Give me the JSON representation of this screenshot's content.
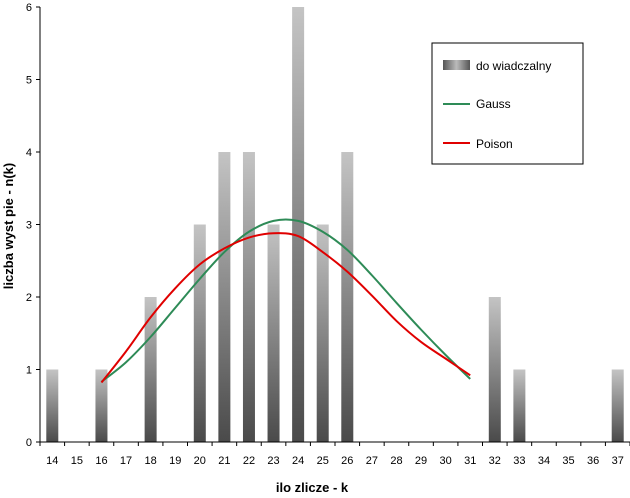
{
  "chart_data": {
    "type": "bar",
    "xlabel": "ilo    zlicze  - k",
    "ylabel": "liczba wyst pie  - n(k)",
    "ylim": [
      0,
      6
    ],
    "yticks": [
      "0",
      "1",
      "2",
      "3",
      "4",
      "5",
      "6"
    ],
    "categories": [
      "14",
      "15",
      "16",
      "17",
      "18",
      "19",
      "20",
      "21",
      "22",
      "23",
      "24",
      "25",
      "26",
      "27",
      "28",
      "29",
      "30",
      "31",
      "32",
      "33",
      "34",
      "35",
      "36",
      "37"
    ],
    "series": [
      {
        "name": "do  wiadczalny",
        "type": "bar",
        "values": [
          1,
          0,
          1,
          0,
          2,
          0,
          3,
          4,
          4,
          3,
          6,
          3,
          4,
          0,
          0,
          0,
          0,
          0,
          2,
          1,
          0,
          0,
          0,
          1
        ]
      },
      {
        "name": "Gauss",
        "type": "line",
        "color": "#2e8b57",
        "x": [
          16,
          17,
          18,
          19,
          20,
          21,
          22,
          23,
          24,
          25,
          26,
          27,
          28,
          29,
          30,
          31
        ],
        "values": [
          0.83,
          1.1,
          1.45,
          1.85,
          2.25,
          2.62,
          2.9,
          3.05,
          3.05,
          2.9,
          2.65,
          2.3,
          1.92,
          1.55,
          1.2,
          0.87
        ]
      },
      {
        "name": "Poison",
        "type": "line",
        "color": "#e00000",
        "x": [
          16,
          17,
          18,
          19,
          20,
          21,
          22,
          23,
          24,
          25,
          26,
          27,
          28,
          29,
          30,
          31
        ],
        "values": [
          0.82,
          1.25,
          1.72,
          2.12,
          2.45,
          2.67,
          2.82,
          2.88,
          2.84,
          2.62,
          2.35,
          2.02,
          1.67,
          1.38,
          1.15,
          0.92
        ]
      }
    ],
    "legend": "top-right"
  }
}
